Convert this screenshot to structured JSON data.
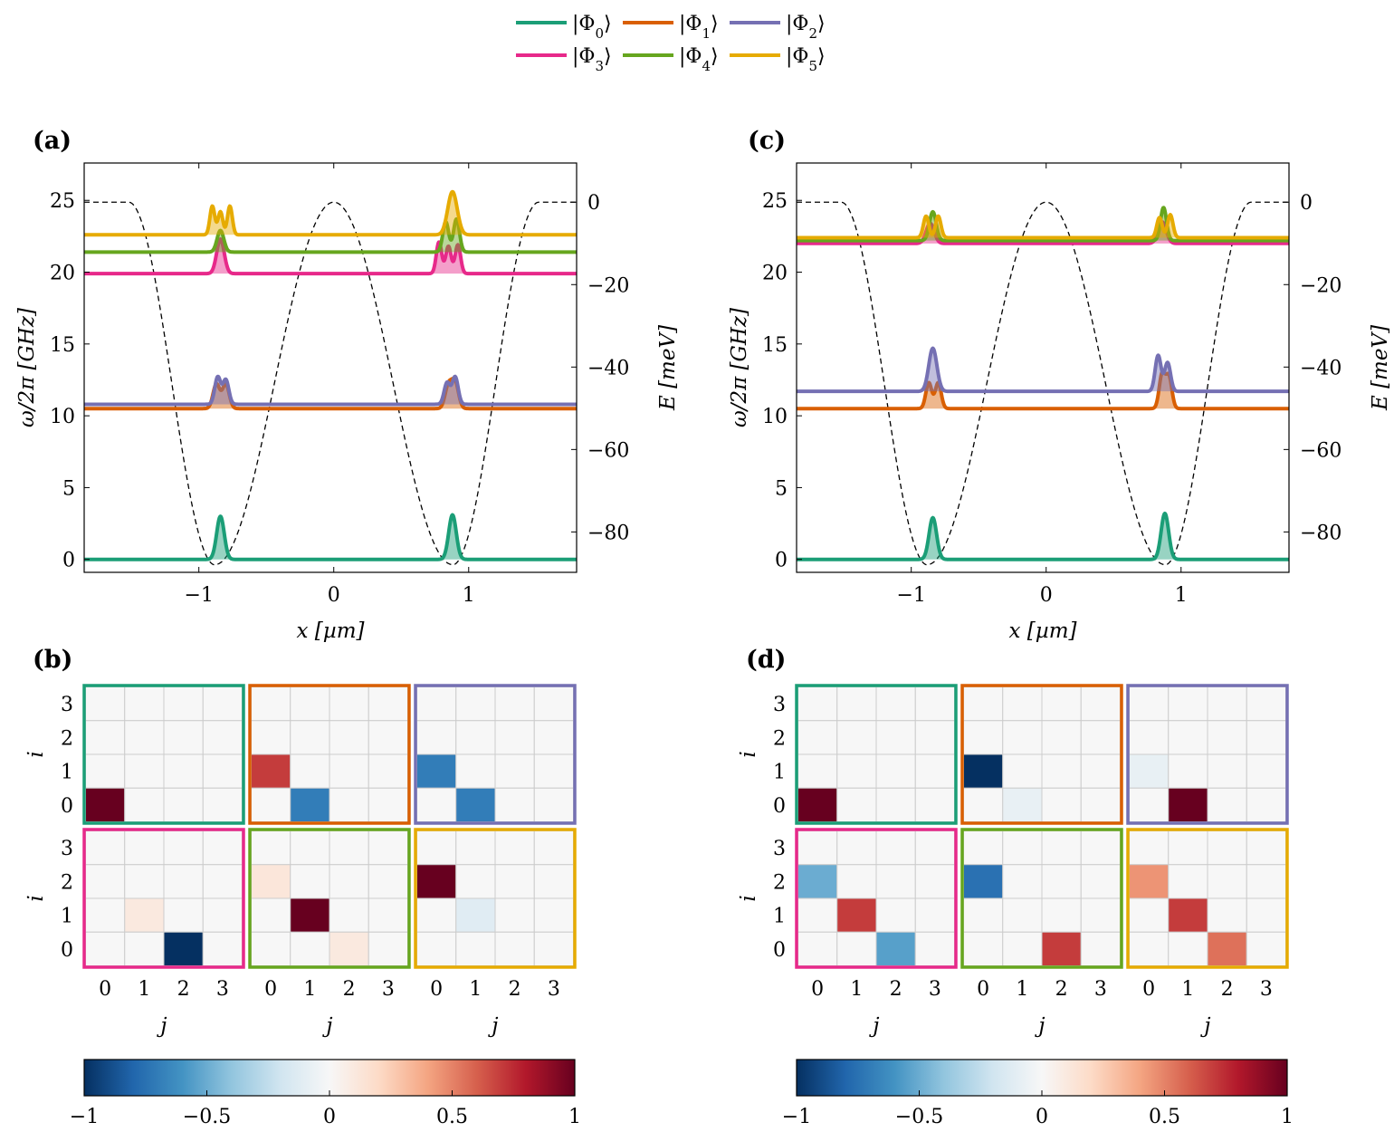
{
  "legend": [
    {
      "label": "|Φ0⟩",
      "color": "#1b9e77"
    },
    {
      "label": "|Φ1⟩",
      "color": "#d95f02"
    },
    {
      "label": "|Φ2⟩",
      "color": "#7570b3"
    },
    {
      "label": "|Φ3⟩",
      "color": "#e7298a"
    },
    {
      "label": "|Φ4⟩",
      "color": "#66a61e"
    },
    {
      "label": "|Φ5⟩",
      "color": "#e6ab02"
    }
  ],
  "colorbar": {
    "ticks": [
      "−1",
      "−0.5",
      "0",
      "0.5",
      "1"
    ],
    "cmap": "RdBu_r"
  },
  "chart_data": [
    {
      "panel": "(a)",
      "type": "line",
      "xlabel": "x [µm]",
      "ylabel": "ω/2π [GHz]",
      "ylabel_right": "E [meV]",
      "xlim": [
        -1.85,
        1.8
      ],
      "ylim": [
        -0.9,
        27.6
      ],
      "y2lim": [
        -89.8,
        9.5
      ],
      "xticks": [
        -1,
        0,
        1
      ],
      "xtick_labels": [
        "−1",
        "0",
        "1"
      ],
      "yticks": [
        0,
        5,
        10,
        15,
        20,
        25
      ],
      "yticks_right": [
        0,
        -20,
        -40,
        -60,
        -80
      ],
      "ytick_labels_right": [
        "0",
        "−20",
        "−40",
        "−60",
        "−80"
      ],
      "potential": {
        "style": "dashed",
        "flat_level_meV": 0,
        "well_depth_meV": -88,
        "wells_at_um": [
          -0.88,
          0.88
        ]
      },
      "series": [
        {
          "name": "|Φ0⟩",
          "color": "#1b9e77",
          "level_GHz": 0.0,
          "peaks": [
            {
              "x": -0.84,
              "w": 0.028,
              "a": 3.0
            },
            {
              "x": 0.88,
              "w": 0.028,
              "a": 3.1
            }
          ]
        },
        {
          "name": "|Φ1⟩",
          "color": "#d95f02",
          "level_GHz": 10.5,
          "peaks": [
            {
              "x": -0.87,
              "w": 0.025,
              "a": 1.7
            },
            {
              "x": -0.8,
              "w": 0.025,
              "a": 1.7
            },
            {
              "x": 0.85,
              "w": 0.025,
              "a": 1.6
            },
            {
              "x": 0.9,
              "w": 0.025,
              "a": 1.8
            }
          ]
        },
        {
          "name": "|Φ2⟩",
          "color": "#7570b3",
          "level_GHz": 10.8,
          "peaks": [
            {
              "x": -0.86,
              "w": 0.022,
              "a": 1.9
            },
            {
              "x": -0.8,
              "w": 0.022,
              "a": 1.7
            },
            {
              "x": 0.84,
              "w": 0.022,
              "a": 1.5
            },
            {
              "x": 0.9,
              "w": 0.022,
              "a": 1.9
            }
          ]
        },
        {
          "name": "|Φ3⟩",
          "color": "#e7298a",
          "level_GHz": 19.9,
          "peaks": [
            {
              "x": -0.84,
              "w": 0.028,
              "a": 2.4
            },
            {
              "x": 0.78,
              "w": 0.02,
              "a": 2.2
            },
            {
              "x": 0.85,
              "w": 0.02,
              "a": 1.9
            },
            {
              "x": 0.92,
              "w": 0.02,
              "a": 2.0
            }
          ]
        },
        {
          "name": "|Φ4⟩",
          "color": "#66a61e",
          "level_GHz": 21.4,
          "peaks": [
            {
              "x": -0.84,
              "w": 0.025,
              "a": 1.5
            },
            {
              "x": 0.83,
              "w": 0.022,
              "a": 2.1
            },
            {
              "x": 0.91,
              "w": 0.022,
              "a": 2.3
            }
          ]
        },
        {
          "name": "|Φ5⟩",
          "color": "#e6ab02",
          "level_GHz": 22.6,
          "peaks": [
            {
              "x": -0.9,
              "w": 0.018,
              "a": 2.0
            },
            {
              "x": -0.84,
              "w": 0.018,
              "a": 1.6
            },
            {
              "x": -0.77,
              "w": 0.018,
              "a": 2.0
            },
            {
              "x": 0.88,
              "w": 0.035,
              "a": 3.0
            }
          ]
        }
      ]
    },
    {
      "panel": "(c)",
      "type": "line",
      "xlabel": "x [µm]",
      "ylabel": "ω/2π [GHz]",
      "ylabel_right": "E [meV]",
      "xlim": [
        -1.85,
        1.8
      ],
      "ylim": [
        -0.9,
        27.6
      ],
      "y2lim": [
        -89.8,
        9.5
      ],
      "xticks": [
        -1,
        0,
        1
      ],
      "xtick_labels": [
        "−1",
        "0",
        "1"
      ],
      "yticks": [
        0,
        5,
        10,
        15,
        20,
        25
      ],
      "yticks_right": [
        0,
        -20,
        -40,
        -60,
        -80
      ],
      "ytick_labels_right": [
        "0",
        "−20",
        "−40",
        "−60",
        "−80"
      ],
      "potential": {
        "style": "dashed",
        "flat_level_meV": 0,
        "well_depth_meV": -88,
        "wells_at_um": [
          -0.88,
          0.88
        ]
      },
      "series": [
        {
          "name": "|Φ0⟩",
          "color": "#1b9e77",
          "level_GHz": 0.0,
          "peaks": [
            {
              "x": -0.84,
              "w": 0.028,
              "a": 2.9
            },
            {
              "x": 0.88,
              "w": 0.028,
              "a": 3.2
            }
          ]
        },
        {
          "name": "|Φ1⟩",
          "color": "#d95f02",
          "level_GHz": 10.5,
          "peaks": [
            {
              "x": -0.87,
              "w": 0.022,
              "a": 1.8
            },
            {
              "x": -0.8,
              "w": 0.022,
              "a": 1.8
            },
            {
              "x": 0.86,
              "w": 0.022,
              "a": 2.4
            },
            {
              "x": 0.91,
              "w": 0.022,
              "a": 2.2
            }
          ]
        },
        {
          "name": "|Φ2⟩",
          "color": "#7570b3",
          "level_GHz": 11.7,
          "peaks": [
            {
              "x": -0.84,
              "w": 0.03,
              "a": 3.0
            },
            {
              "x": 0.83,
              "w": 0.022,
              "a": 2.5
            },
            {
              "x": 0.9,
              "w": 0.022,
              "a": 2.0
            }
          ]
        },
        {
          "name": "|Φ3⟩",
          "color": "#e7298a",
          "level_GHz": 22.0,
          "peaks": [
            {
              "x": -0.86,
              "w": 0.03,
              "a": 1.4
            },
            {
              "x": 0.86,
              "w": 0.03,
              "a": 1.5
            }
          ]
        },
        {
          "name": "|Φ4⟩",
          "color": "#66a61e",
          "level_GHz": 22.2,
          "peaks": [
            {
              "x": -0.84,
              "w": 0.025,
              "a": 2.0
            },
            {
              "x": 0.87,
              "w": 0.022,
              "a": 2.3
            }
          ]
        },
        {
          "name": "|Φ5⟩",
          "color": "#e6ab02",
          "level_GHz": 22.4,
          "peaks": [
            {
              "x": -0.89,
              "w": 0.02,
              "a": 1.5
            },
            {
              "x": -0.8,
              "w": 0.02,
              "a": 1.5
            },
            {
              "x": 0.84,
              "w": 0.02,
              "a": 1.4
            },
            {
              "x": 0.92,
              "w": 0.02,
              "a": 1.6
            }
          ]
        }
      ]
    },
    {
      "panel": "(b)",
      "type": "heatmap",
      "xlabel": "j",
      "ylabel": "i",
      "ticks": [
        "0",
        "1",
        "2",
        "3"
      ],
      "zlim": [
        -1,
        1
      ],
      "matrices_note": "rows listed i=3 (top) to i=0 (bottom), columns j=0..3",
      "matrices": [
        {
          "state": "|Φ0⟩",
          "values": [
            [
              0,
              0,
              0,
              0
            ],
            [
              0,
              0,
              0,
              0
            ],
            [
              0,
              0,
              0,
              0
            ],
            [
              1,
              0,
              0,
              0
            ]
          ]
        },
        {
          "state": "|Φ1⟩",
          "values": [
            [
              0,
              0,
              0,
              0
            ],
            [
              0,
              0,
              0,
              0
            ],
            [
              0.7,
              0,
              0,
              0
            ],
            [
              0,
              -0.7,
              0,
              0
            ]
          ]
        },
        {
          "state": "|Φ2⟩",
          "values": [
            [
              0,
              0,
              0,
              0
            ],
            [
              0,
              0,
              0,
              0
            ],
            [
              -0.7,
              0,
              0,
              0
            ],
            [
              0,
              -0.7,
              0,
              0
            ]
          ]
        },
        {
          "state": "|Φ3⟩",
          "values": [
            [
              0,
              0,
              0,
              0
            ],
            [
              0,
              0,
              0,
              0
            ],
            [
              0,
              0.1,
              0,
              0
            ],
            [
              0,
              0,
              -1,
              0
            ]
          ]
        },
        {
          "state": "|Φ4⟩",
          "values": [
            [
              0,
              0,
              0,
              0
            ],
            [
              0.12,
              0,
              0,
              0
            ],
            [
              0,
              1,
              0,
              0
            ],
            [
              0,
              0,
              0.1,
              0
            ]
          ]
        },
        {
          "state": "|Φ5⟩",
          "values": [
            [
              0,
              0,
              0,
              0
            ],
            [
              1,
              0,
              0,
              0
            ],
            [
              0,
              -0.12,
              0,
              0
            ],
            [
              0,
              0,
              0,
              0
            ]
          ]
        }
      ]
    },
    {
      "panel": "(d)",
      "type": "heatmap",
      "xlabel": "j",
      "ylabel": "i",
      "ticks": [
        "0",
        "1",
        "2",
        "3"
      ],
      "zlim": [
        -1,
        1
      ],
      "matrices_note": "rows listed i=3 (top) to i=0 (bottom), columns j=0..3",
      "matrices": [
        {
          "state": "|Φ0⟩",
          "values": [
            [
              0,
              0,
              0,
              0
            ],
            [
              0,
              0,
              0,
              0
            ],
            [
              0,
              0,
              0,
              0
            ],
            [
              1,
              0,
              0,
              0
            ]
          ]
        },
        {
          "state": "|Φ1⟩",
          "values": [
            [
              0,
              0,
              0,
              0
            ],
            [
              0,
              0,
              0,
              0
            ],
            [
              -1,
              0,
              0,
              0
            ],
            [
              0,
              -0.08,
              0,
              0
            ]
          ]
        },
        {
          "state": "|Φ2⟩",
          "values": [
            [
              0,
              0,
              0,
              0
            ],
            [
              0,
              0,
              0,
              0
            ],
            [
              -0.08,
              0,
              0,
              0
            ],
            [
              0,
              1,
              0,
              0
            ]
          ]
        },
        {
          "state": "|Φ3⟩",
          "values": [
            [
              0,
              0,
              0,
              0
            ],
            [
              -0.5,
              0,
              0,
              0
            ],
            [
              0,
              0.7,
              0,
              0
            ],
            [
              0,
              0,
              -0.55,
              0
            ]
          ]
        },
        {
          "state": "|Φ4⟩",
          "values": [
            [
              0,
              0,
              0,
              0
            ],
            [
              -0.75,
              0,
              0,
              0
            ],
            [
              0,
              0,
              0,
              0
            ],
            [
              0,
              0,
              0.7,
              0
            ]
          ]
        },
        {
          "state": "|Φ5⟩",
          "values": [
            [
              0,
              0,
              0,
              0
            ],
            [
              0.45,
              0,
              0,
              0
            ],
            [
              0,
              0.7,
              0,
              0
            ],
            [
              0,
              0,
              0.55,
              0
            ]
          ]
        }
      ]
    }
  ]
}
